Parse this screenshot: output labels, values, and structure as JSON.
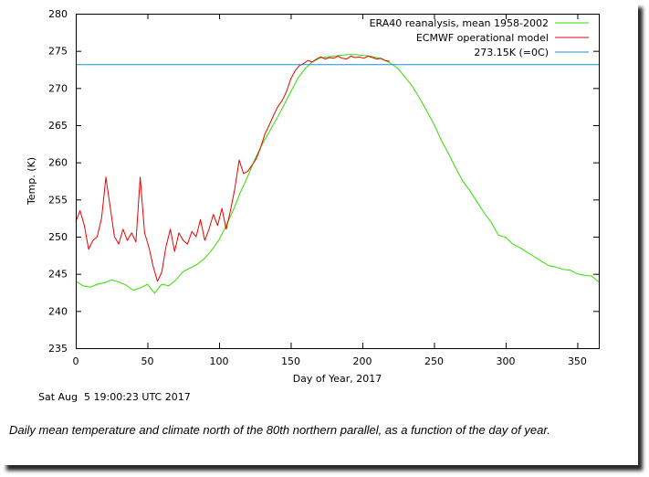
{
  "chart_data": {
    "type": "line",
    "xlabel": "Day of Year, 2017",
    "ylabel": "Temp. (K)",
    "xlim": [
      0,
      365
    ],
    "ylim": [
      235,
      280
    ],
    "xticks": [
      0,
      50,
      100,
      150,
      200,
      250,
      300,
      350
    ],
    "yticks": [
      235,
      240,
      245,
      250,
      255,
      260,
      265,
      270,
      275,
      280
    ],
    "grid": false,
    "legend_position": "top-right",
    "series": [
      {
        "name": "ERA40 reanalysis, mean 1958-2002",
        "color": "#33dd00",
        "x": [
          0,
          5,
          10,
          15,
          20,
          25,
          30,
          35,
          40,
          45,
          50,
          55,
          60,
          65,
          70,
          75,
          80,
          85,
          90,
          95,
          100,
          105,
          110,
          115,
          120,
          125,
          130,
          135,
          140,
          145,
          150,
          155,
          160,
          165,
          170,
          175,
          180,
          185,
          190,
          195,
          200,
          205,
          210,
          215,
          220,
          225,
          230,
          235,
          240,
          245,
          250,
          255,
          260,
          265,
          270,
          275,
          280,
          285,
          290,
          295,
          300,
          305,
          310,
          315,
          320,
          325,
          330,
          335,
          340,
          345,
          350,
          355,
          360,
          365
        ],
        "y": [
          244.0,
          243.4,
          243.2,
          243.6,
          243.8,
          244.2,
          243.9,
          243.5,
          242.8,
          243.1,
          243.6,
          242.4,
          243.6,
          243.4,
          244.2,
          245.3,
          245.8,
          246.3,
          247.1,
          248.2,
          249.6,
          251.5,
          253.6,
          256.0,
          258.1,
          260.4,
          262.4,
          264.1,
          265.8,
          267.6,
          269.5,
          271.3,
          272.6,
          273.5,
          274.0,
          274.2,
          274.3,
          274.4,
          274.5,
          274.5,
          274.4,
          274.3,
          274.1,
          273.8,
          273.3,
          272.6,
          271.4,
          270.2,
          268.6,
          266.9,
          265.1,
          263.0,
          261.2,
          259.3,
          257.5,
          256.2,
          254.7,
          253.2,
          251.9,
          250.2,
          249.9,
          249.0,
          248.5,
          247.9,
          247.3,
          246.7,
          246.1,
          245.9,
          245.6,
          245.5,
          245.0,
          244.8,
          244.7,
          243.9
        ]
      },
      {
        "name": "ECMWF operational model",
        "color": "#ee0000",
        "x": [
          0,
          3,
          6,
          9,
          12,
          15,
          18,
          21,
          24,
          27,
          30,
          33,
          36,
          39,
          42,
          45,
          48,
          51,
          54,
          57,
          60,
          63,
          66,
          69,
          72,
          75,
          78,
          81,
          84,
          87,
          90,
          93,
          96,
          99,
          102,
          105,
          108,
          111,
          114,
          117,
          120,
          123,
          126,
          129,
          132,
          135,
          138,
          141,
          144,
          147,
          150,
          153,
          156,
          159,
          162,
          165,
          168,
          171,
          174,
          177,
          180,
          183,
          186,
          189,
          192,
          195,
          198,
          201,
          204,
          207,
          210,
          213,
          216,
          219
        ],
        "y": [
          252.0,
          253.5,
          251.5,
          248.3,
          249.5,
          250.0,
          252.5,
          258.0,
          254.0,
          250.0,
          249.0,
          251.0,
          249.5,
          250.5,
          249.3,
          258.0,
          250.5,
          248.6,
          246.0,
          244.0,
          245.2,
          248.7,
          251.0,
          248.0,
          250.5,
          249.5,
          249.0,
          250.7,
          250.0,
          252.3,
          249.5,
          251.0,
          253.0,
          251.5,
          253.8,
          251.0,
          253.5,
          256.5,
          260.3,
          258.5,
          258.8,
          259.6,
          260.5,
          262.0,
          263.8,
          265.0,
          266.3,
          267.5,
          268.3,
          269.5,
          271.2,
          272.3,
          273.0,
          273.3,
          273.7,
          273.5,
          273.9,
          274.2,
          273.9,
          274.1,
          274.0,
          274.3,
          274.0,
          273.9,
          274.3,
          274.1,
          274.2,
          274.0,
          274.3,
          274.1,
          273.9,
          274.0,
          273.7,
          273.6
        ]
      },
      {
        "name": "273.15K (=0C)",
        "color": "#1a8fd6",
        "x": [
          0,
          365
        ],
        "y": [
          273.15,
          273.15
        ]
      }
    ]
  },
  "footer": {
    "timestamp": "Sat Aug  5 19:00:23 UTC 2017",
    "caption": "Daily mean temperature and climate north of the 80th northern parallel, as a function of the day of year."
  }
}
